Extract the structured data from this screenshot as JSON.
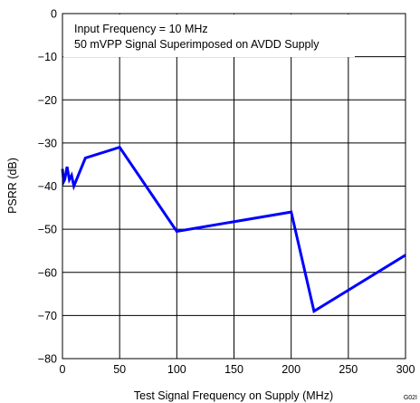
{
  "chart_data": {
    "type": "line",
    "xlabel": "Test Signal Frequency on Supply (MHz)",
    "ylabel": "PSRR (dB)",
    "xlim": [
      0,
      300
    ],
    "ylim": [
      -80,
      0
    ],
    "xticks": [
      0,
      50,
      100,
      150,
      200,
      250,
      300
    ],
    "yticks": [
      0,
      -10,
      -20,
      -30,
      -40,
      -50,
      -60,
      -70,
      -80
    ],
    "xtick_labels": [
      "0",
      "50",
      "100",
      "150",
      "200",
      "250",
      "300"
    ],
    "ytick_labels": [
      "0",
      "−10",
      "−20",
      "−30",
      "−40",
      "−50",
      "−60",
      "−70",
      "−80"
    ],
    "grid": true,
    "annotations": [
      "Input Frequency = 10 MHz",
      "50 mVPP Signal Superimposed on AVDD Supply"
    ],
    "figure_id": "G02I",
    "line_color": "#0000ff",
    "series": [
      {
        "x": [
          0,
          1,
          2,
          4,
          6,
          8,
          10,
          20,
          50,
          100,
          200,
          220,
          300
        ],
        "y": [
          -36,
          -39,
          -38.5,
          -35.5,
          -38.5,
          -37.5,
          -40,
          -33.5,
          -31,
          -50.5,
          -46,
          -69,
          -56
        ]
      }
    ]
  }
}
